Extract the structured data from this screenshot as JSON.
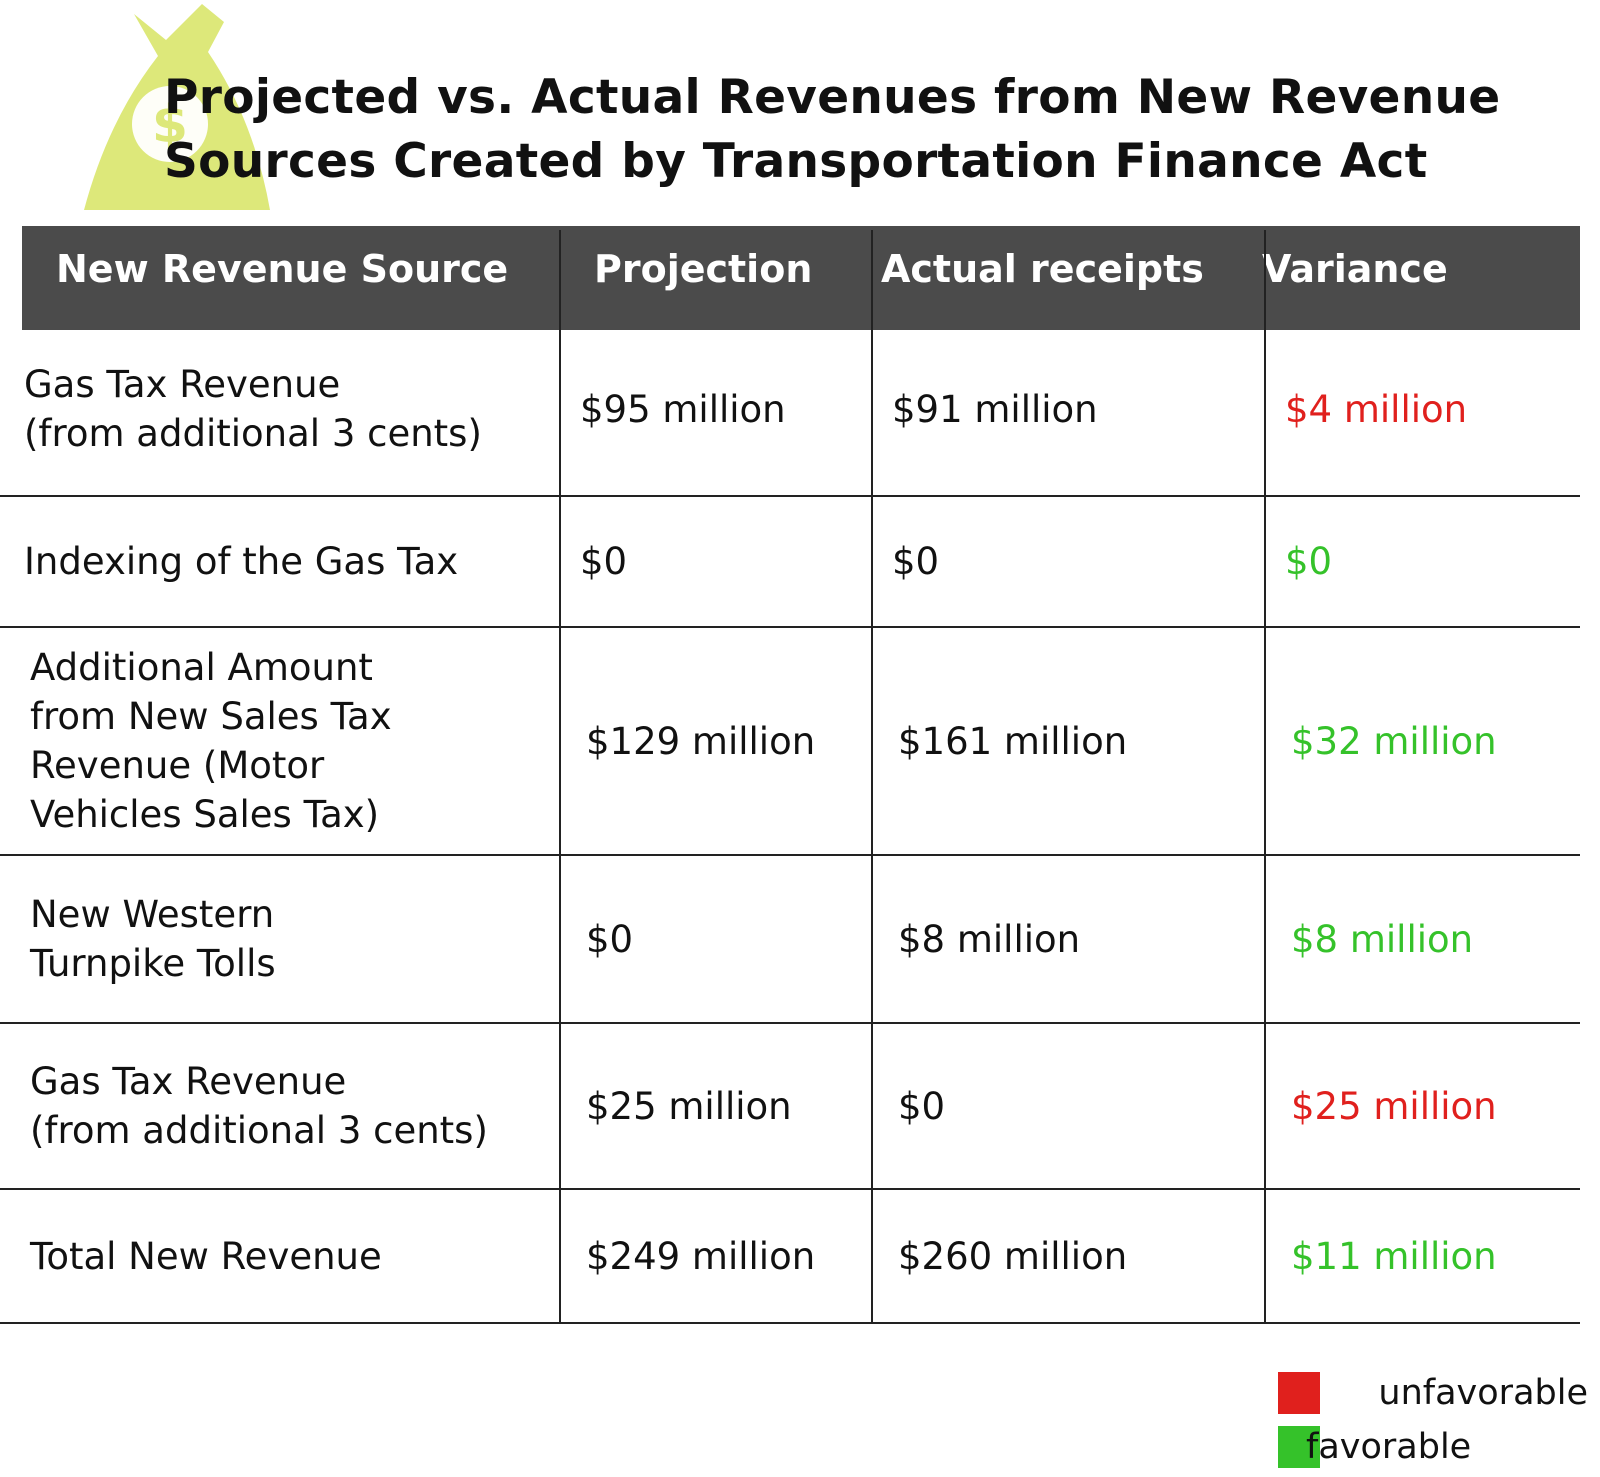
{
  "title": {
    "line1": "Projected vs. Actual Revenues from New Revenue",
    "line2": "Sources Created by Transportation Finance Act"
  },
  "logo": {
    "icon": "money-bag-icon",
    "color": "#dde87a"
  },
  "colors": {
    "header_bg": "#4b4b4b",
    "unfavorable": "#e0201d",
    "favorable": "#35c22a"
  },
  "chart_data": {
    "type": "table",
    "columns": [
      "New Revenue Source",
      "Projection",
      "Actual receipts",
      "Variance"
    ],
    "rows": [
      {
        "source": "Gas Tax Revenue\n(from additional 3 cents)",
        "projection": "$95 million",
        "actual": "$91 million",
        "variance": "$4 million",
        "status": "unfavorable"
      },
      {
        "source": "Indexing of the Gas Tax",
        "projection": "$0",
        "actual": "$0",
        "variance": "$0",
        "status": "favorable"
      },
      {
        "source": "Additional Amount\nfrom New Sales Tax\nRevenue (Motor\nVehicles Sales Tax)",
        "projection": "$129 million",
        "actual": "$161 million",
        "variance": "$32 million",
        "status": "favorable"
      },
      {
        "source": "New Western\nTurnpike Tolls",
        "projection": "$0",
        "actual": "$8 million",
        "variance": "$8 million",
        "status": "favorable"
      },
      {
        "source": "Gas Tax Revenue\n(from additional 3 cents)",
        "projection": "$25 million",
        "actual": "$0",
        "variance": "$25 million",
        "status": "unfavorable"
      },
      {
        "source": "Total New Revenue",
        "projection": "$249 million",
        "actual": "$260 million",
        "variance": "$11 million",
        "status": "favorable"
      }
    ]
  },
  "legend": {
    "unfavorable_label": "unfavorable",
    "favorable_label": "favorable"
  }
}
